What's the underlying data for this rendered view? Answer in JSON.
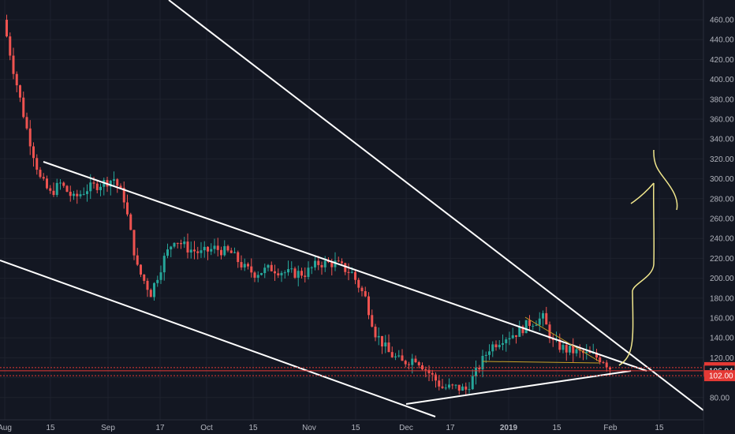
{
  "chart_data": {
    "type": "candlestick",
    "x_ticks": [
      "Aug",
      "15",
      "Sep",
      "17",
      "Oct",
      "15",
      "Nov",
      "15",
      "Dec",
      "17",
      "2019",
      "15",
      "Feb",
      "15"
    ],
    "y_ticks": [
      80,
      100,
      120,
      140,
      160,
      180,
      200,
      220,
      240,
      260,
      280,
      300,
      320,
      340,
      360,
      380,
      400,
      420,
      440,
      460
    ],
    "ylim": [
      70,
      470
    ],
    "price_tags": [
      {
        "value": "110.07",
        "color": "#e53935"
      },
      {
        "value": "106.94",
        "color": "#131722",
        "text_color": "#ffffff",
        "bordered": true
      },
      {
        "value": "102.00",
        "color": "#e53935"
      }
    ],
    "horizontal_lines": [
      110.07,
      106.94,
      102.0
    ],
    "colors": {
      "up": "#26a69a",
      "down": "#ef5350",
      "trendline": "#ffffff",
      "drawing": "#f0e68c",
      "price_line": "#e53935"
    },
    "points": [
      [
        "2018-08-01",
        460
      ],
      [
        "2018-08-04",
        410
      ],
      [
        "2018-08-08",
        350
      ],
      [
        "2018-08-12",
        300
      ],
      [
        "2018-08-15",
        285
      ],
      [
        "2018-08-18",
        295
      ],
      [
        "2018-08-22",
        280
      ],
      [
        "2018-08-26",
        290
      ],
      [
        "2018-08-30",
        295
      ],
      [
        "2018-09-03",
        300
      ],
      [
        "2018-09-06",
        280
      ],
      [
        "2018-09-10",
        210
      ],
      [
        "2018-09-14",
        185
      ],
      [
        "2018-09-18",
        220
      ],
      [
        "2018-09-21",
        240
      ],
      [
        "2018-09-25",
        230
      ],
      [
        "2018-09-29",
        225
      ],
      [
        "2018-10-03",
        230
      ],
      [
        "2018-10-08",
        225
      ],
      [
        "2018-10-12",
        210
      ],
      [
        "2018-10-15",
        205
      ],
      [
        "2018-10-20",
        210
      ],
      [
        "2018-10-25",
        205
      ],
      [
        "2018-10-30",
        205
      ],
      [
        "2018-11-03",
        215
      ],
      [
        "2018-11-08",
        215
      ],
      [
        "2018-11-13",
        205
      ],
      [
        "2018-11-17",
        180
      ],
      [
        "2018-11-20",
        145
      ],
      [
        "2018-11-24",
        125
      ],
      [
        "2018-11-28",
        115
      ],
      [
        "2018-12-02",
        120
      ],
      [
        "2018-12-06",
        105
      ],
      [
        "2018-12-10",
        90
      ],
      [
        "2018-12-14",
        90
      ],
      [
        "2018-12-17",
        88
      ],
      [
        "2018-12-20",
        105
      ],
      [
        "2018-12-24",
        130
      ],
      [
        "2018-12-28",
        140
      ],
      [
        "2019-01-01",
        145
      ],
      [
        "2019-01-05",
        155
      ],
      [
        "2019-01-09",
        160
      ],
      [
        "2019-01-12",
        135
      ],
      [
        "2019-01-16",
        128
      ],
      [
        "2019-01-20",
        125
      ],
      [
        "2019-01-24",
        122
      ],
      [
        "2019-01-27",
        118
      ],
      [
        "2019-01-29",
        110
      ]
    ]
  }
}
